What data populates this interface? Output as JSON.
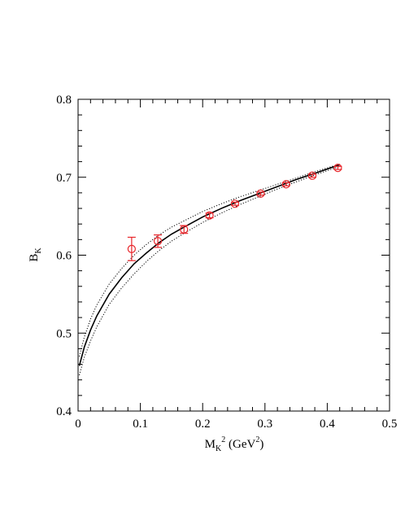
{
  "chart_data": {
    "type": "scatter",
    "xlabel": {
      "main": "M",
      "sub": "K",
      "sup": "2",
      "unit_open": " (GeV",
      "unit_sup": "2",
      "unit_close": ")"
    },
    "ylabel": {
      "main": "B",
      "sub": "K"
    },
    "xlim": [
      0,
      0.5
    ],
    "ylim": [
      0.4,
      0.8
    ],
    "xticks": [
      "0",
      "0.1",
      "0.2",
      "0.3",
      "0.4",
      "0.5"
    ],
    "yticks": [
      "0.4",
      "0.5",
      "0.6",
      "0.7",
      "0.8"
    ],
    "grid": false,
    "series": [
      {
        "kind": "points",
        "color": "#e8262b",
        "points": [
          {
            "x": 0.086,
            "y": 0.608,
            "err": 0.015
          },
          {
            "x": 0.128,
            "y": 0.618,
            "err": 0.008
          },
          {
            "x": 0.17,
            "y": 0.633,
            "err": 0.005
          },
          {
            "x": 0.211,
            "y": 0.651,
            "err": 0.003
          },
          {
            "x": 0.252,
            "y": 0.666,
            "err": 0.002
          },
          {
            "x": 0.293,
            "y": 0.679,
            "err": 0.002
          },
          {
            "x": 0.334,
            "y": 0.691,
            "err": 0.002
          },
          {
            "x": 0.376,
            "y": 0.702,
            "err": 0.002
          },
          {
            "x": 0.417,
            "y": 0.712,
            "err": 0.002
          }
        ]
      },
      {
        "kind": "fit",
        "style": "solid",
        "color": "#000000",
        "x": [
          0.002,
          0.01,
          0.02,
          0.03,
          0.05,
          0.07,
          0.09,
          0.11,
          0.13,
          0.15,
          0.17,
          0.2,
          0.23,
          0.26,
          0.29,
          0.32,
          0.35,
          0.38,
          0.42
        ],
        "y": [
          0.458,
          0.482,
          0.504,
          0.522,
          0.55,
          0.571,
          0.589,
          0.603,
          0.616,
          0.627,
          0.636,
          0.649,
          0.66,
          0.67,
          0.679,
          0.688,
          0.697,
          0.705,
          0.716
        ]
      },
      {
        "kind": "band-upper",
        "style": "dotted",
        "color": "#000000",
        "x": [
          0.002,
          0.01,
          0.02,
          0.03,
          0.05,
          0.07,
          0.09,
          0.11,
          0.13,
          0.15,
          0.17,
          0.2,
          0.23,
          0.26,
          0.29,
          0.32,
          0.35,
          0.38,
          0.42
        ],
        "y": [
          0.47,
          0.495,
          0.518,
          0.536,
          0.563,
          0.583,
          0.6,
          0.614,
          0.626,
          0.636,
          0.644,
          0.656,
          0.666,
          0.675,
          0.683,
          0.691,
          0.699,
          0.707,
          0.717
        ]
      },
      {
        "kind": "band-lower",
        "style": "dotted",
        "color": "#000000",
        "x": [
          0.002,
          0.01,
          0.02,
          0.03,
          0.05,
          0.07,
          0.09,
          0.11,
          0.13,
          0.15,
          0.17,
          0.2,
          0.23,
          0.26,
          0.29,
          0.32,
          0.35,
          0.38,
          0.42
        ],
        "y": [
          0.446,
          0.469,
          0.49,
          0.508,
          0.537,
          0.558,
          0.576,
          0.592,
          0.606,
          0.618,
          0.628,
          0.642,
          0.654,
          0.665,
          0.675,
          0.685,
          0.694,
          0.703,
          0.714
        ]
      }
    ]
  }
}
